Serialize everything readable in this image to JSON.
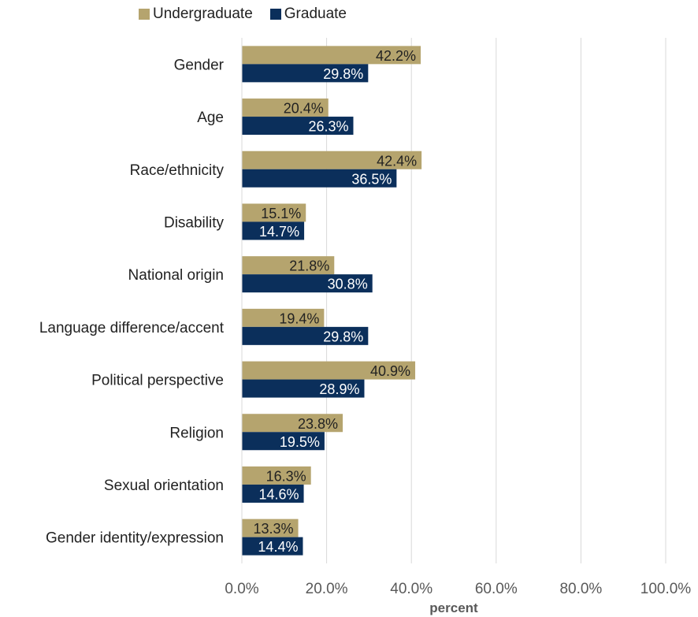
{
  "chart_data": {
    "type": "bar",
    "orientation": "horizontal",
    "categories": [
      "Gender",
      "Age",
      "Race/ethnicity",
      "Disability",
      "National origin",
      "Language difference/accent",
      "Political perspective",
      "Religion",
      "Sexual orientation",
      "Gender identity/expression"
    ],
    "series": [
      {
        "name": "Undergraduate",
        "color": "#b5a46e",
        "values": [
          42.2,
          20.4,
          42.4,
          15.1,
          21.8,
          19.4,
          40.9,
          23.8,
          16.3,
          13.3
        ],
        "labels": [
          "42.2%",
          "20.4%",
          "42.4%",
          "15.1%",
          "21.8%",
          "19.4%",
          "40.9%",
          "23.8%",
          "16.3%",
          "13.3%"
        ]
      },
      {
        "name": "Graduate",
        "color": "#0b2f5b",
        "values": [
          29.8,
          26.3,
          36.5,
          14.7,
          30.8,
          29.8,
          28.9,
          19.5,
          14.6,
          14.4
        ],
        "labels": [
          "29.8%",
          "26.3%",
          "36.5%",
          "14.7%",
          "30.8%",
          "29.8%",
          "28.9%",
          "19.5%",
          "14.6%",
          "14.4%"
        ]
      }
    ],
    "xlabel": "percent",
    "ylabel": "",
    "xlim": [
      0,
      100
    ],
    "xticks": [
      0,
      20,
      40,
      60,
      80,
      100
    ],
    "xtick_labels": [
      "0.0%",
      "20.0%",
      "40.0%",
      "60.0%",
      "80.0%",
      "100.0%"
    ],
    "grid": true,
    "legend_position": "top-left"
  }
}
